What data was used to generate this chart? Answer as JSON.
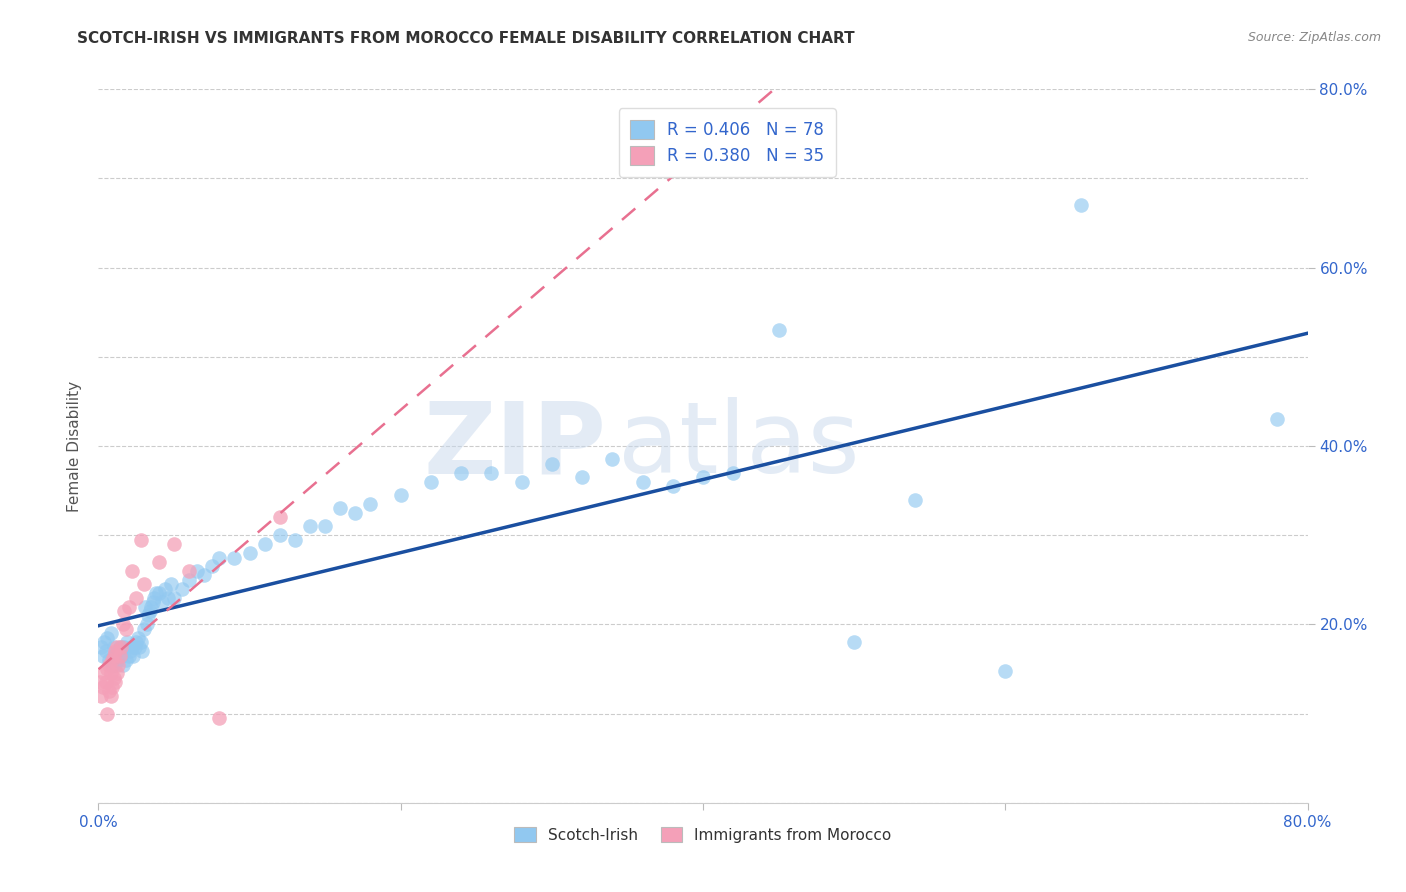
{
  "title": "SCOTCH-IRISH VS IMMIGRANTS FROM MOROCCO FEMALE DISABILITY CORRELATION CHART",
  "source": "Source: ZipAtlas.com",
  "ylabel": "Female Disability",
  "series1_label": "Scotch-Irish",
  "series2_label": "Immigrants from Morocco",
  "series1_R": 0.406,
  "series1_N": 78,
  "series2_R": 0.38,
  "series2_N": 35,
  "watermark_zip": "ZIP",
  "watermark_atlas": "atlas",
  "xlim": [
    0.0,
    0.8
  ],
  "ylim": [
    0.0,
    0.8
  ],
  "xticks": [
    0.0,
    0.2,
    0.4,
    0.6,
    0.8
  ],
  "yticks": [
    0.2,
    0.4,
    0.6,
    0.8
  ],
  "xtick_labels": [
    "0.0%",
    "",
    "",
    "",
    "80.0%"
  ],
  "ytick_labels_right": [
    "20.0%",
    "40.0%",
    "60.0%",
    "80.0%"
  ],
  "color_blue": "#91C8F0",
  "color_pink": "#F4A0B8",
  "color_blue_line": "#1A4FA0",
  "color_pink_line": "#E87090",
  "color_title": "#333333",
  "color_axis_ticks": "#3366CC",
  "background_color": "#FFFFFF",
  "grid_color": "#CCCCCC",
  "scotch_irish_x": [
    0.002,
    0.003,
    0.004,
    0.005,
    0.006,
    0.007,
    0.008,
    0.009,
    0.01,
    0.01,
    0.011,
    0.012,
    0.013,
    0.014,
    0.015,
    0.016,
    0.017,
    0.018,
    0.019,
    0.02,
    0.021,
    0.022,
    0.023,
    0.024,
    0.025,
    0.026,
    0.027,
    0.028,
    0.029,
    0.03,
    0.031,
    0.032,
    0.033,
    0.034,
    0.035,
    0.036,
    0.037,
    0.038,
    0.04,
    0.042,
    0.044,
    0.046,
    0.048,
    0.05,
    0.055,
    0.06,
    0.065,
    0.07,
    0.075,
    0.08,
    0.09,
    0.1,
    0.11,
    0.12,
    0.13,
    0.14,
    0.15,
    0.16,
    0.17,
    0.18,
    0.2,
    0.22,
    0.24,
    0.26,
    0.28,
    0.3,
    0.32,
    0.34,
    0.36,
    0.38,
    0.4,
    0.42,
    0.45,
    0.5,
    0.54,
    0.6,
    0.65,
    0.78
  ],
  "scotch_irish_y": [
    0.175,
    0.165,
    0.18,
    0.17,
    0.185,
    0.16,
    0.19,
    0.155,
    0.165,
    0.175,
    0.155,
    0.16,
    0.17,
    0.175,
    0.165,
    0.155,
    0.175,
    0.16,
    0.18,
    0.165,
    0.17,
    0.175,
    0.165,
    0.175,
    0.18,
    0.185,
    0.175,
    0.18,
    0.17,
    0.195,
    0.22,
    0.2,
    0.21,
    0.215,
    0.22,
    0.225,
    0.23,
    0.235,
    0.235,
    0.225,
    0.24,
    0.23,
    0.245,
    0.23,
    0.24,
    0.25,
    0.26,
    0.255,
    0.265,
    0.275,
    0.275,
    0.28,
    0.29,
    0.3,
    0.295,
    0.31,
    0.31,
    0.33,
    0.325,
    0.335,
    0.345,
    0.36,
    0.37,
    0.37,
    0.36,
    0.38,
    0.365,
    0.385,
    0.36,
    0.355,
    0.365,
    0.37,
    0.53,
    0.18,
    0.34,
    0.148,
    0.67,
    0.43
  ],
  "morocco_x": [
    0.001,
    0.002,
    0.003,
    0.004,
    0.005,
    0.006,
    0.006,
    0.007,
    0.007,
    0.008,
    0.008,
    0.009,
    0.009,
    0.01,
    0.01,
    0.011,
    0.011,
    0.012,
    0.012,
    0.013,
    0.014,
    0.015,
    0.016,
    0.017,
    0.018,
    0.02,
    0.022,
    0.025,
    0.028,
    0.03,
    0.04,
    0.05,
    0.06,
    0.08,
    0.12
  ],
  "morocco_y": [
    0.135,
    0.12,
    0.13,
    0.145,
    0.135,
    0.1,
    0.15,
    0.125,
    0.155,
    0.12,
    0.145,
    0.13,
    0.16,
    0.14,
    0.165,
    0.135,
    0.17,
    0.145,
    0.175,
    0.155,
    0.165,
    0.175,
    0.2,
    0.215,
    0.195,
    0.22,
    0.26,
    0.23,
    0.295,
    0.245,
    0.27,
    0.29,
    0.26,
    0.095,
    0.32
  ]
}
